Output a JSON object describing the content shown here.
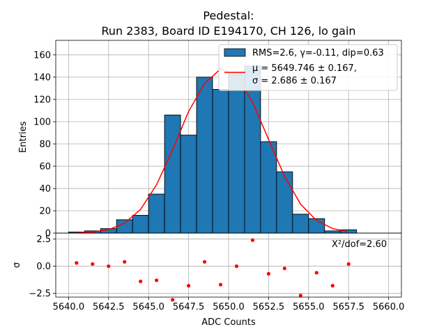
{
  "chart_data": [
    {
      "type": "bar",
      "title_line1": "Pedestal:",
      "title_line2": "Run 2383, Board ID E194170, CH 126, lo gain",
      "ylabel": "Entries",
      "xlim": [
        5639.2,
        5660.8
      ],
      "ylim": [
        0,
        173
      ],
      "yticks": [
        0,
        20,
        40,
        60,
        80,
        100,
        120,
        140,
        160
      ],
      "bin_width": 1,
      "bins": [
        {
          "left": 5640,
          "count": 1
        },
        {
          "left": 5641,
          "count": 2
        },
        {
          "left": 5642,
          "count": 4
        },
        {
          "left": 5643,
          "count": 12
        },
        {
          "left": 5644,
          "count": 16
        },
        {
          "left": 5645,
          "count": 35
        },
        {
          "left": 5646,
          "count": 106
        },
        {
          "left": 5647,
          "count": 88
        },
        {
          "left": 5648,
          "count": 140
        },
        {
          "left": 5649,
          "count": 129
        },
        {
          "left": 5650,
          "count": 144
        },
        {
          "left": 5651,
          "count": 150
        },
        {
          "left": 5652,
          "count": 82
        },
        {
          "left": 5653,
          "count": 55
        },
        {
          "left": 5654,
          "count": 17
        },
        {
          "left": 5655,
          "count": 13
        },
        {
          "left": 5656,
          "count": 2
        },
        {
          "left": 5657,
          "count": 3
        }
      ],
      "fit_curve": {
        "color": "#ff0000",
        "x": [
          5640.5,
          5641.5,
          5642.5,
          5643.5,
          5644.5,
          5645.5,
          5646.5,
          5647.5,
          5648.5,
          5649.5,
          5650.5,
          5651.5,
          5652.5,
          5653.5,
          5654.5,
          5655.5,
          5656.5,
          5657.5
        ],
        "y": [
          0.2,
          0.9,
          3.1,
          8.9,
          21.2,
          43.4,
          74.8,
          109.1,
          134.2,
          147.4,
          141.5,
          117.5,
          84.1,
          50.9,
          26.0,
          11.3,
          4.1,
          1.2
        ]
      },
      "bar_color": "#1f77b4",
      "legend": {
        "bar_label": "RMS=2.6, γ=-0.11, dip=0.63",
        "fit_label_line1": "μ = 5649.746 ± 0.167,",
        "fit_label_line2": "σ = 2.686 ± 0.167",
        "position": "top-right"
      },
      "grid": true
    },
    {
      "type": "scatter",
      "xlabel": "ADC Counts",
      "ylabel": "σ",
      "xlim": [
        5639.2,
        5660.8
      ],
      "ylim": [
        -2.85,
        3.05
      ],
      "xticks": [
        5640.0,
        5642.5,
        5645.0,
        5647.5,
        5650.0,
        5652.5,
        5655.0,
        5657.5,
        5660.0
      ],
      "xtick_labels": [
        "5640.0",
        "5642.5",
        "5645.0",
        "5647.5",
        "5650.0",
        "5652.5",
        "5655.0",
        "5657.5",
        "5660.0"
      ],
      "yticks": [
        -2.5,
        0.0,
        2.5
      ],
      "ytick_labels": [
        "−2.5",
        "0.0",
        "2.5"
      ],
      "point_color": "#ff0000",
      "x": [
        5640.5,
        5641.5,
        5642.5,
        5643.5,
        5644.5,
        5645.5,
        5646.5,
        5647.5,
        5648.5,
        5649.5,
        5650.5,
        5651.5,
        5652.5,
        5653.5,
        5654.5,
        5655.5,
        5656.5,
        5657.5
      ],
      "y": [
        0.3,
        0.2,
        0.0,
        0.4,
        -1.4,
        -1.3,
        -3.1,
        -1.8,
        0.4,
        -1.7,
        0.0,
        2.4,
        -0.7,
        -0.2,
        -2.7,
        -0.6,
        -1.8,
        0.2
      ],
      "annotation": "X²/dof=2.60",
      "grid": true
    }
  ]
}
